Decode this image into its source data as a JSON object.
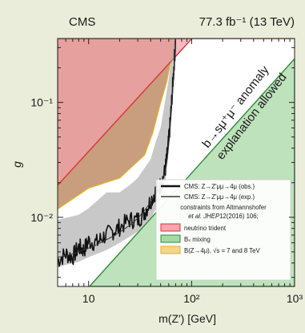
{
  "chart_data": {
    "type": "line",
    "header_left": "CMS",
    "header_right": "77.3 fb⁻¹ (13 TeV)",
    "xlabel": "m(Z′) [GeV]",
    "ylabel": "g",
    "xscale": "log",
    "yscale": "log",
    "xlim": [
      5,
      1000
    ],
    "ylim": [
      0.0025,
      0.36
    ],
    "x_ticks": [
      {
        "value": 10,
        "label": "10"
      },
      {
        "value": 100,
        "label": "10²"
      },
      {
        "value": 1000,
        "label": "10³"
      }
    ],
    "y_ticks": [
      {
        "value": 0.01,
        "label": "10⁻²"
      },
      {
        "value": 0.1,
        "label": "10⁻¹"
      }
    ],
    "annotation": {
      "line1": "b→sμ⁺μ⁻ anomaly",
      "line2": "explanation allowed",
      "color": "#22308a"
    },
    "regions": [
      {
        "name": "neutrino trident",
        "color": "#f0a0a8",
        "edge": "#d73535",
        "polygon": [
          [
            5,
            0.019
          ],
          [
            1000,
            3.4
          ],
          [
            1000,
            0.36
          ],
          [
            5,
            0.36
          ]
        ]
      },
      {
        "name": "Bs mixing",
        "color": "#a8d8a5",
        "edge": "#2e8b3a",
        "polygon": [
          [
            10.2,
            0.0025
          ],
          [
            1000,
            0.24
          ],
          [
            1000,
            0.0025
          ]
        ]
      },
      {
        "name": "B(Z→4μ), √s = 7 and 8 TeV",
        "color": "#a6632e",
        "edge": "#e0b030",
        "polygon": [
          [
            5,
            0.36
          ],
          [
            5,
            0.0118
          ],
          [
            10,
            0.018
          ],
          [
            20,
            0.022
          ],
          [
            35,
            0.035
          ],
          [
            42,
            0.055
          ],
          [
            50,
            0.1
          ],
          [
            57,
            0.15
          ],
          [
            64,
            0.25
          ],
          [
            68,
            0.36
          ]
        ]
      }
    ],
    "series": [
      {
        "name": "CMS: Z→Z′μμ→4μ (obs.)",
        "style": "observed",
        "x": [
          5,
          6,
          7,
          8,
          9,
          10,
          12,
          14,
          17,
          20,
          25,
          30,
          35,
          40,
          45,
          50,
          55,
          58,
          61,
          64,
          67,
          70
        ],
        "y": [
          0.0042,
          0.0048,
          0.0045,
          0.0055,
          0.0052,
          0.0062,
          0.006,
          0.0068,
          0.0075,
          0.0082,
          0.0095,
          0.0095,
          0.011,
          0.014,
          0.017,
          0.019,
          0.025,
          0.035,
          0.055,
          0.1,
          0.19,
          0.35
        ]
      },
      {
        "name": "CMS: Z→Z′μμ→4μ (exp.)",
        "style": "expected",
        "x": [
          5,
          6,
          7,
          8,
          9,
          10,
          12,
          14,
          17,
          20,
          25,
          30,
          35,
          40,
          45,
          50,
          55,
          58,
          61,
          64,
          67,
          70
        ],
        "y": [
          0.0045,
          0.0046,
          0.0048,
          0.005,
          0.0052,
          0.0054,
          0.0058,
          0.0062,
          0.0068,
          0.0074,
          0.0085,
          0.0098,
          0.0115,
          0.0135,
          0.016,
          0.019,
          0.024,
          0.032,
          0.05,
          0.09,
          0.17,
          0.33
        ]
      }
    ],
    "expected_band_upper": {
      "x": [
        5,
        8,
        10,
        15,
        20,
        25,
        30,
        35,
        40,
        45,
        50,
        55,
        60,
        64,
        68
      ],
      "y": [
        0.0095,
        0.0105,
        0.012,
        0.0165,
        0.0165,
        0.019,
        0.022,
        0.027,
        0.032,
        0.046,
        0.06,
        0.1,
        0.16,
        0.25,
        0.36
      ]
    },
    "expected_band_lower": {
      "x": [
        5,
        8,
        10,
        15,
        20,
        30,
        40,
        50,
        55,
        58,
        62,
        66,
        70
      ],
      "y": [
        0.0037,
        0.0041,
        0.0045,
        0.0052,
        0.006,
        0.0075,
        0.0098,
        0.014,
        0.019,
        0.028,
        0.055,
        0.12,
        0.3
      ]
    },
    "legend": {
      "placement": "bottom-right",
      "items": [
        {
          "label": "CMS: Z→Z′μμ→4μ (obs.)",
          "kind": "observed"
        },
        {
          "label": "CMS: Z→Z′μμ→4μ (exp.)",
          "kind": "expected"
        }
      ],
      "text_line1": "constraints from Altmannshofer",
      "text_line2_prefix": "et al.",
      "text_line2_journal": "JHEP",
      "text_line2_rest": "12(2016) 106;",
      "constraint_items": [
        {
          "label": "neutrino trident",
          "fill": "#f2a8ae",
          "edge": "#d73535"
        },
        {
          "label": "Bₛ mixing",
          "fill": "#a8d8a5",
          "edge": "#2e8b3a"
        },
        {
          "label": "B(Z→4μ), √s = 7 and 8 TeV",
          "fill": "#f2d690",
          "edge": "#e0b030"
        }
      ]
    }
  }
}
